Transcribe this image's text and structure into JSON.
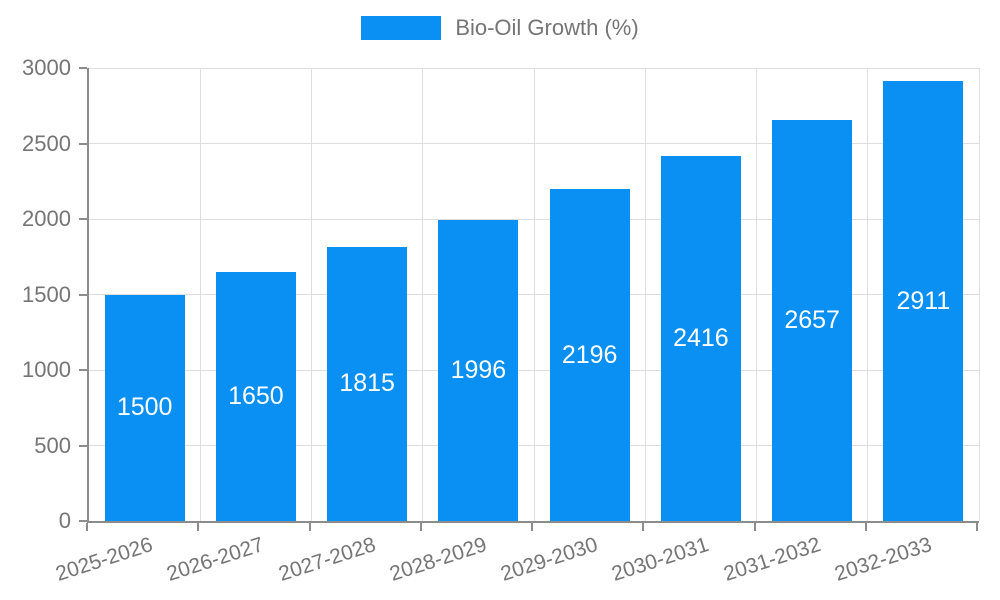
{
  "chart_data": {
    "type": "bar",
    "title": "",
    "legend": "Bio-Oil Growth (%)",
    "legend_position": "top",
    "categories": [
      "2025-2026",
      "2026-2027",
      "2027-2028",
      "2028-2029",
      "2029-2030",
      "2030-2031",
      "2031-2032",
      "2032-2033"
    ],
    "values": [
      1500,
      1650,
      1815,
      1996,
      2196,
      2416,
      2657,
      2911
    ],
    "xlabel": "",
    "ylabel": "",
    "ylim": [
      0,
      3000
    ],
    "yticks": [
      0,
      500,
      1000,
      1500,
      2000,
      2500,
      3000
    ],
    "grid": true,
    "colors": {
      "bar": "#0a8ff2",
      "bar_value_text": "#ffffff",
      "axis_line": "#8c8c8c",
      "grid_line": "#dedede",
      "tick_text": "#757575",
      "legend_text": "#757575",
      "background": "#ffffff"
    }
  }
}
